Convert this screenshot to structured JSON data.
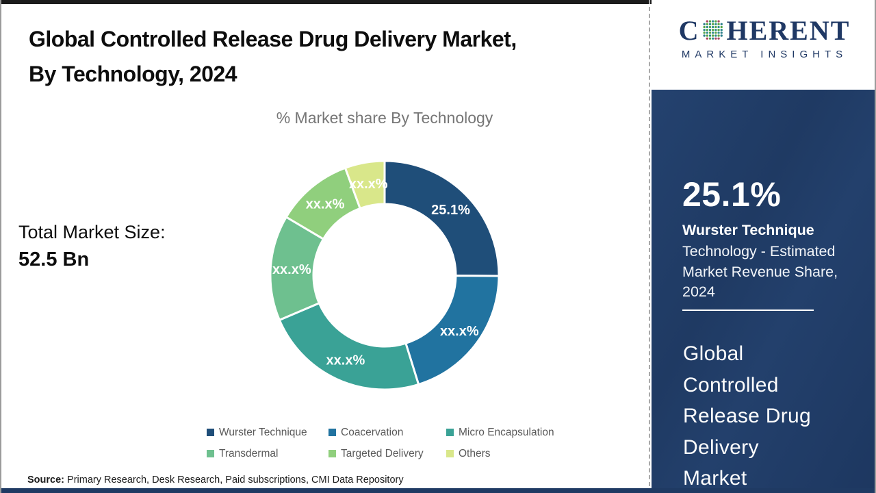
{
  "header": {
    "title_line1": "Global Controlled Release Drug Delivery Market,",
    "title_line2": "By Technology, 2024"
  },
  "chart_data": {
    "type": "pie",
    "subtype": "donut",
    "title": "% Market share By Technology",
    "direction": "clockwise",
    "start_angle_deg": 0,
    "legend_position": "bottom",
    "segments": [
      {
        "name": "Wurster Technique",
        "label": "25.1%",
        "value_pct": 25.1,
        "color": "#1F4E79"
      },
      {
        "name": "Coacervation",
        "label": "xx.x%",
        "value_pct": 20.1,
        "color": "#2173A0"
      },
      {
        "name": "Micro Encapsulation",
        "label": "xx.x%",
        "value_pct": 23.4,
        "color": "#3AA296"
      },
      {
        "name": "Transdermal",
        "label": "xx.x%",
        "value_pct": 14.9,
        "color": "#6EC08F"
      },
      {
        "name": "Targeted Delivery",
        "label": "xx.x%",
        "value_pct": 10.9,
        "color": "#90CF7D"
      },
      {
        "name": "Others",
        "label": "xx.x%",
        "value_pct": 5.6,
        "color": "#D9E78A"
      }
    ]
  },
  "totals": {
    "label": "Total Market Size:",
    "value": "52.5 Bn"
  },
  "source": {
    "label": "Source:",
    "text": " Primary Research, Desk Research, Paid subscriptions, CMI Data Repository"
  },
  "sidebar": {
    "logo": {
      "brand_part1": "C",
      "brand_part2": "HERENT",
      "brand_subtitle": "MARKET INSIGHTS"
    },
    "stat_value": "25.1%",
    "stat_title": "Wurster Technique",
    "stat_desc": "Technology - Estimated Market Revenue Share, 2024",
    "market_name": "Global Controlled Release Drug Delivery Market"
  },
  "colors": {
    "sidebar_navy": "#1F3A63",
    "logo_navy": "#1F3864"
  }
}
